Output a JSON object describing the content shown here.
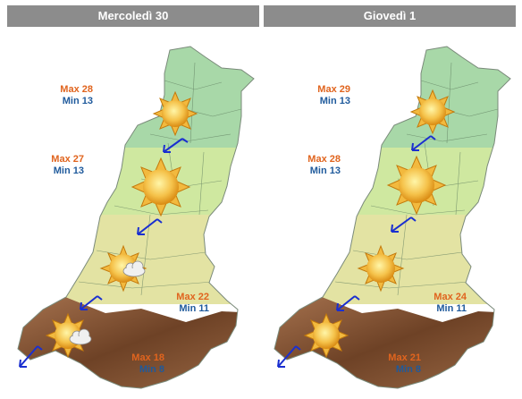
{
  "days": [
    {
      "title": "Mercoledì 30",
      "zones": [
        {
          "max": "Max 28",
          "min": "Min 13",
          "sky": "sun-icon",
          "wind": "wind-arrow-southwest-icon"
        },
        {
          "max": "Max 27",
          "min": "Min 13",
          "sky": "sun-icon",
          "wind": "wind-arrow-southwest-icon"
        },
        {
          "max": "Max 22",
          "min": "Min 11",
          "sky": "sun-with-cloud-icon",
          "wind": "wind-arrow-southwest-icon"
        },
        {
          "max": "Max 18",
          "min": "Min 8",
          "sky": "sun-with-cloud-icon",
          "wind": "wind-arrow-southwest-icon"
        }
      ]
    },
    {
      "title": "Giovedì 1",
      "zones": [
        {
          "max": "Max 29",
          "min": "Min 13",
          "sky": "sun-icon",
          "wind": "wind-arrow-southwest-icon"
        },
        {
          "max": "Max 28",
          "min": "Min 13",
          "sky": "sun-icon",
          "wind": "wind-arrow-southwest-icon"
        },
        {
          "max": "Max 24",
          "min": "Min 11",
          "sky": "sun-icon",
          "wind": "wind-arrow-southwest-icon"
        },
        {
          "max": "Max 21",
          "min": "Min 8",
          "sky": "sun-icon",
          "wind": "wind-arrow-southwest-icon"
        }
      ]
    }
  ],
  "colors": {
    "header_bg": "#8c8c8c",
    "zone_north": "#a8d8a8",
    "zone_center": "#cfe8a0",
    "zone_hills": "#e3e3a3",
    "zone_mountain": "#8b5a3a",
    "max_text": "#e0641e",
    "min_text": "#1f5a9c",
    "wind_arrow": "#1a2fd0"
  }
}
